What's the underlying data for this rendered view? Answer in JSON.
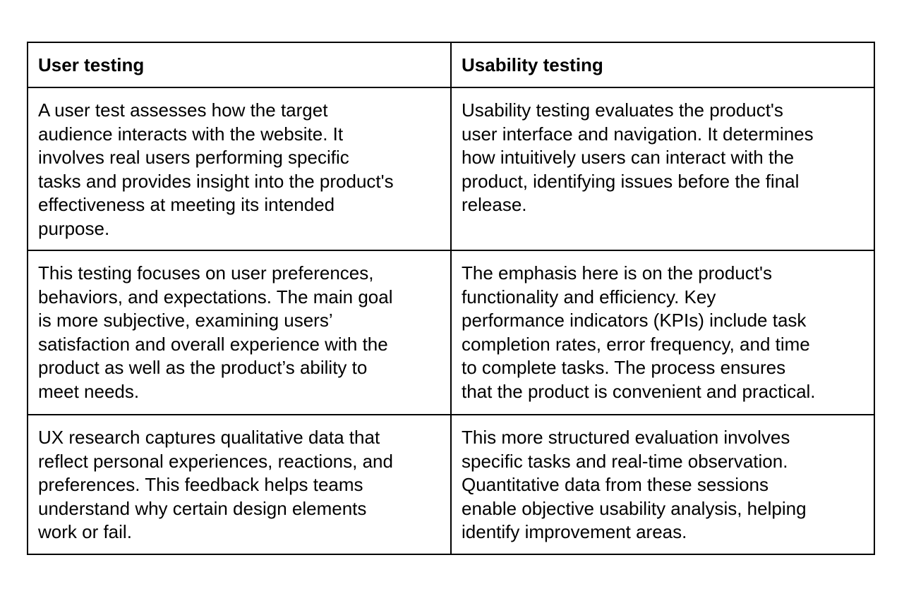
{
  "table": {
    "headers": [
      "User testing",
      "Usability testing"
    ],
    "rows": [
      {
        "user_testing": [
          "A user test assesses how the target",
          "audience interacts with the website. It",
          "involves real users performing specific",
          "tasks and provides insight into the product's",
          "effectiveness at meeting its intended",
          "purpose."
        ],
        "usability_testing": [
          "Usability testing evaluates the product's",
          "user interface and navigation. It determines",
          "how intuitively users can interact with the",
          "product, identifying issues before the final",
          "release."
        ]
      },
      {
        "user_testing": [
          "This testing focuses on user preferences,",
          "behaviors, and expectations. The main goal",
          "is more subjective, examining users’",
          "satisfaction and overall experience with the",
          "product as well as the product’s ability to",
          "meet needs."
        ],
        "usability_testing": [
          "The emphasis here is on the product's",
          "functionality and efficiency. Key",
          "performance indicators (KPIs) include task",
          "completion rates, error frequency, and time",
          "to complete tasks. The process ensures",
          "that the product is convenient and practical."
        ]
      },
      {
        "user_testing": [
          "UX research captures qualitative data that",
          "reflect personal experiences, reactions, and",
          "preferences. This feedback helps teams",
          "understand why certain design elements",
          "work or fail."
        ],
        "usability_testing": [
          "This more structured evaluation involves",
          "specific tasks and real-time observation.",
          "Quantitative data from these sessions",
          "enable objective usability analysis, helping",
          "identify improvement areas."
        ]
      }
    ]
  }
}
